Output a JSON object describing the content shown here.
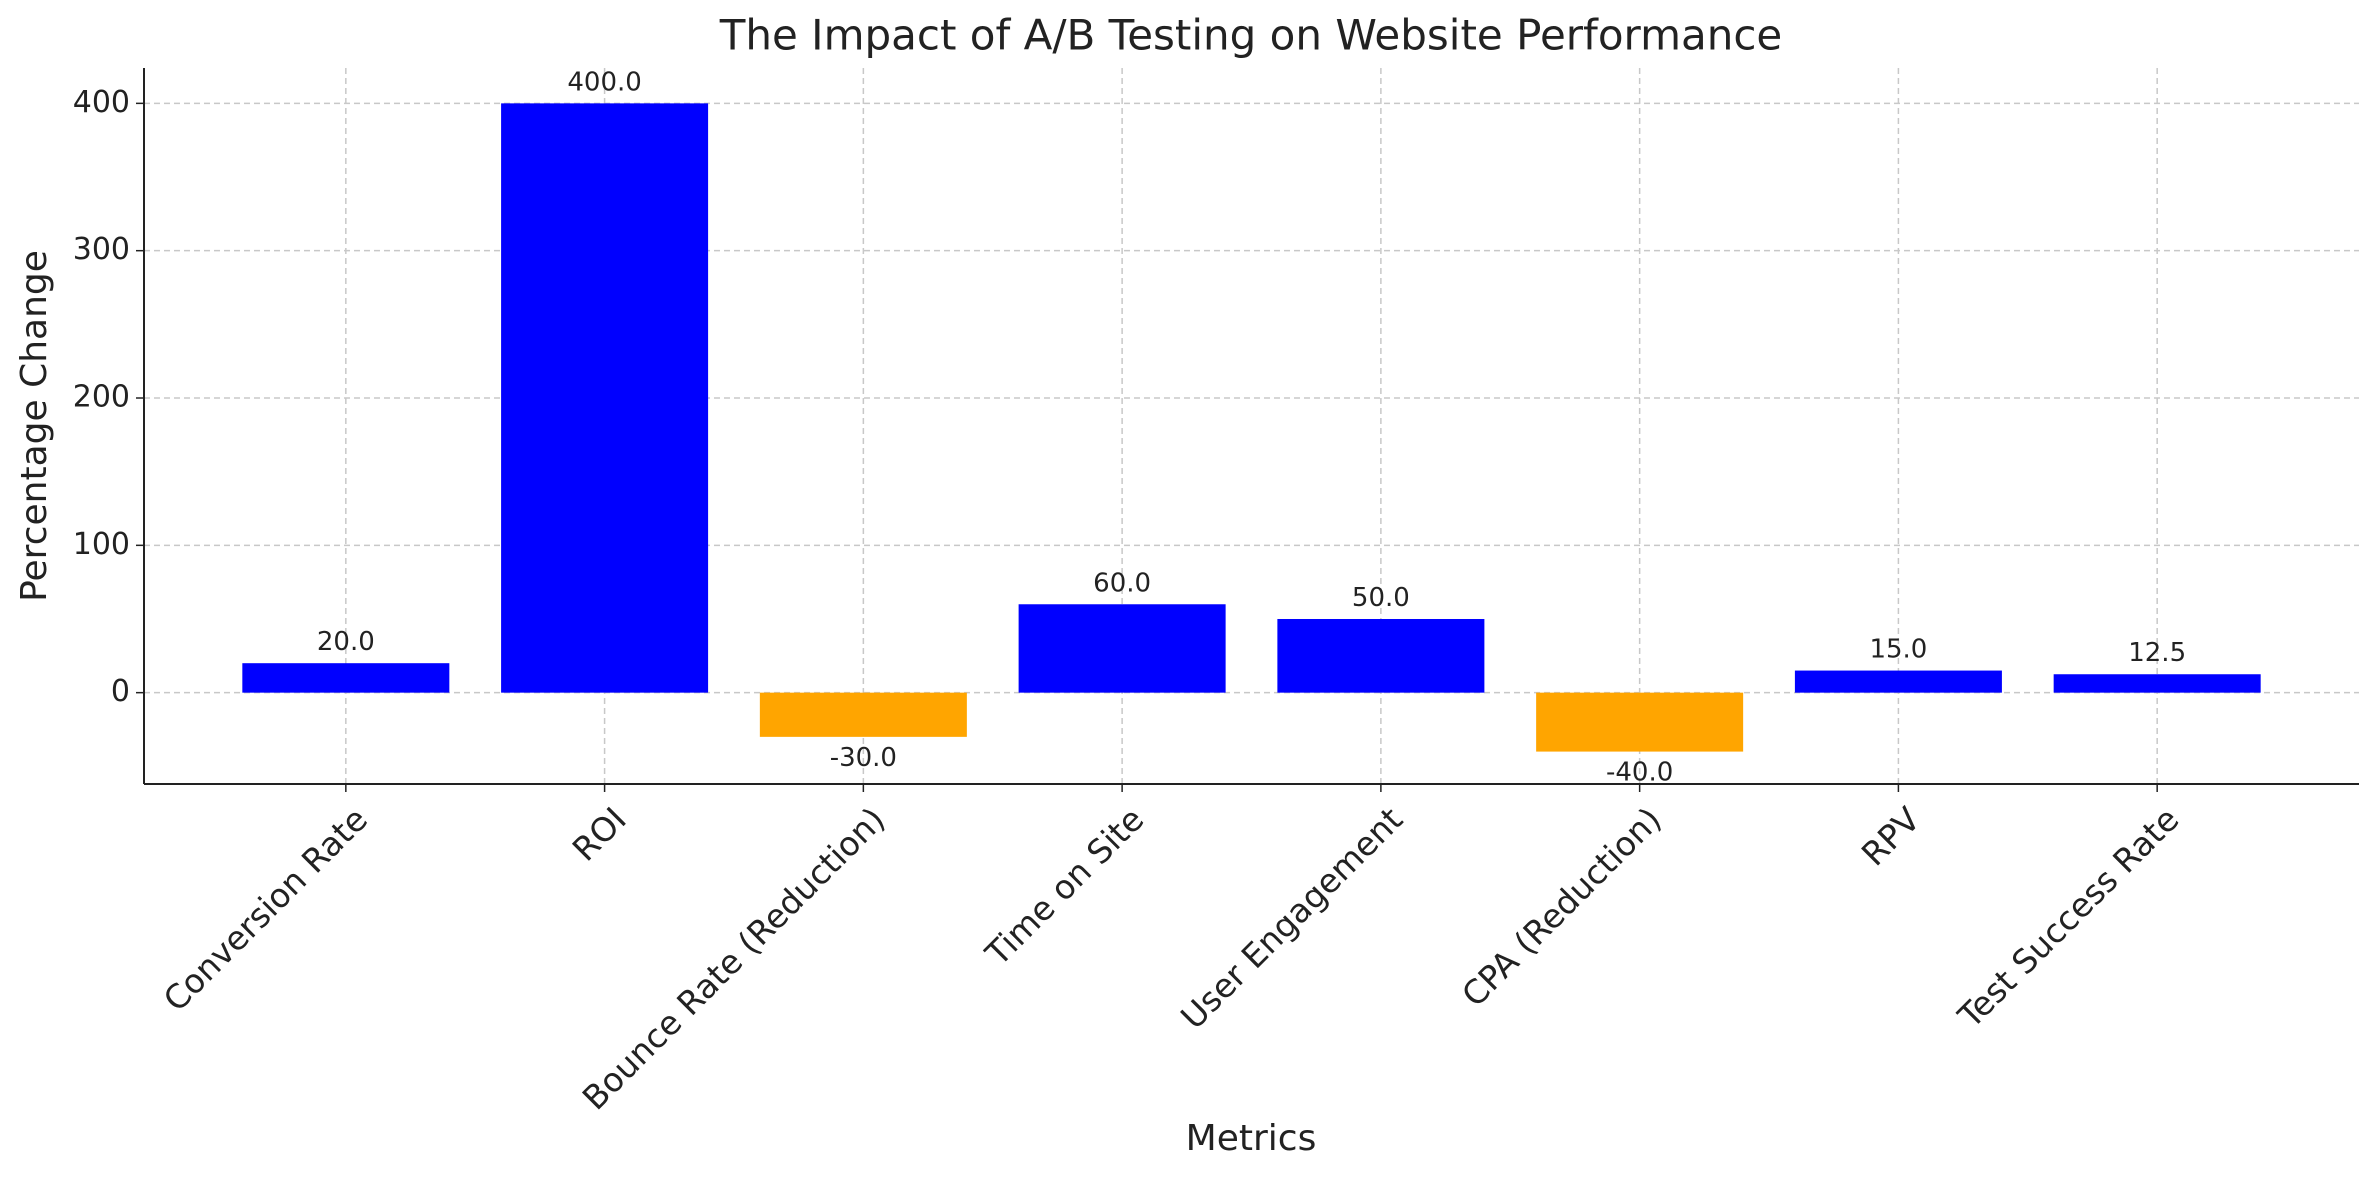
{
  "chart_data": {
    "type": "bar",
    "title": "The Impact of A/B Testing on Website Performance",
    "x_label": "Metrics",
    "y_label": "Percentage Change",
    "categories": [
      "Conversion Rate",
      "ROI",
      "Bounce Rate (Reduction)",
      "Time on Site",
      "User Engagement",
      "CPA (Reduction)",
      "RPV",
      "Test Success Rate"
    ],
    "values": [
      20,
      400,
      -30,
      60,
      50,
      -40,
      15,
      12.5
    ],
    "value_labels": [
      "20.0",
      "400.0",
      "-30.0",
      "60.0",
      "50.0",
      "-40.0",
      "15.0",
      "12.5"
    ],
    "colors": [
      "#0000ff",
      "#0000ff",
      "#ffa500",
      "#0000ff",
      "#0000ff",
      "#ffa500",
      "#0000ff",
      "#0000ff"
    ],
    "ylim": [
      -62,
      424
    ],
    "yticks": [
      0,
      100,
      200,
      300,
      400
    ],
    "grid": true
  }
}
